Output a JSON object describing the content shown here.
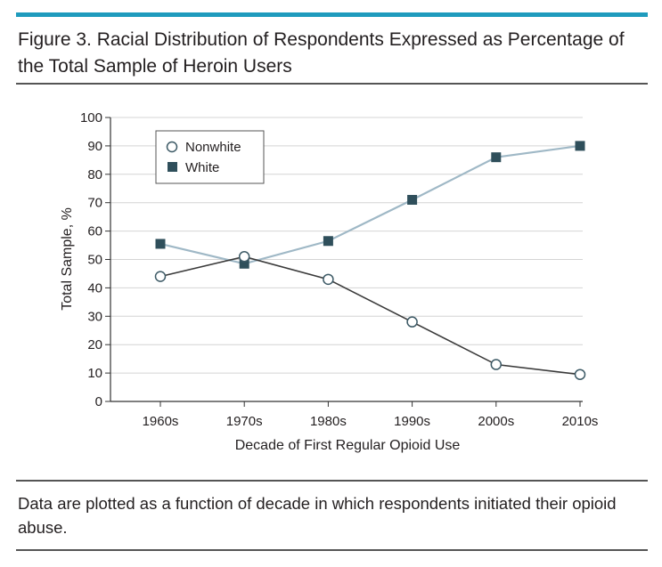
{
  "figure": {
    "title": "Figure 3. Racial Distribution of Respondents Expressed as Percentage of the Total Sample of Heroin Users",
    "caption": "Data are plotted as a function of decade in which respondents initiated their opioid abuse.",
    "accent_color": "#1f9bbd"
  },
  "chart_data": {
    "type": "line",
    "categories": [
      "1960s",
      "1970s",
      "1980s",
      "1990s",
      "2000s",
      "2010s"
    ],
    "series": [
      {
        "name": "Nonwhite",
        "values": [
          44,
          51,
          43,
          28,
          13,
          9.5
        ],
        "color": "#3a3a3a",
        "marker": "circle"
      },
      {
        "name": "White",
        "values": [
          55.5,
          48.5,
          56.5,
          71,
          86,
          90
        ],
        "color": "#9fb8c6",
        "marker": "square"
      }
    ],
    "xlabel": "Decade of First Regular Opioid Use",
    "ylabel": "Total Sample, %",
    "ylim": [
      0,
      100
    ],
    "yticks": [
      0,
      10,
      20,
      30,
      40,
      50,
      60,
      70,
      80,
      90,
      100
    ],
    "grid": true,
    "legend_position": "top-left"
  }
}
